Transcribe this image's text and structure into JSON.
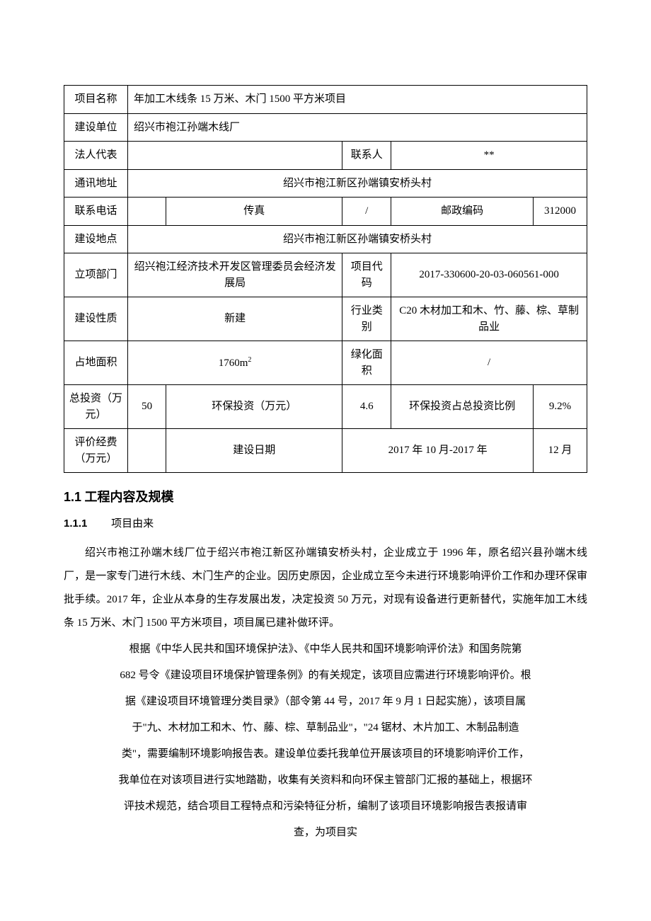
{
  "table": {
    "project_name_label": "项目名称",
    "project_name": "年加工木线条 15 万米、木门 1500 平方米项目",
    "build_unit_label": "建设单位",
    "build_unit": "绍兴市袍江孙端木线厂",
    "legal_rep_label": "法人代表",
    "legal_rep": "",
    "contact_label": "联系人",
    "contact": "**",
    "address_label": "通讯地址",
    "address": "绍兴市袍江新区孙端镇安桥头村",
    "phone_label": "联系电话",
    "phone": "",
    "fax_label": "传真",
    "fax": "/",
    "postcode_label": "邮政编码",
    "postcode": "312000",
    "build_loc_label": "建设地点",
    "build_loc": "绍兴市袍江新区孙端镇安桥头村",
    "dept_label": "立项部门",
    "dept": "绍兴袍江经济技术开发区管理委员会经济发展局",
    "proj_code_label": "项目代码",
    "proj_code": "2017-330600-20-03-060561-000",
    "nature_label": "建设性质",
    "nature": "新建",
    "industry_label": "行业类别",
    "industry": "C20 木材加工和木、竹、藤、棕、草制品业",
    "area_label": "占地面积",
    "area_val": "1760m",
    "area_sup": "2",
    "green_area_label": "绿化面积",
    "green_area": "/",
    "invest_label": "总投资（万元）",
    "invest": "50",
    "env_invest_label": "环保投资（万元）",
    "env_invest": "4.6",
    "env_ratio_label": "环保投资占总投资比例",
    "env_ratio": "9.2%",
    "eval_fee_label": "评价经费（万元）",
    "eval_fee": "",
    "build_date_label": "建设日期",
    "build_date_1": "2017 年 10 月-2017 年",
    "build_date_2": "12 月"
  },
  "section": {
    "num": "1.1",
    "title": "工程内容及规模"
  },
  "subsection": {
    "num": "1.1.1",
    "title": "项目由来"
  },
  "para1": "绍兴市袍江孙端木线厂位于绍兴市袍江新区孙端镇安桥头村，企业成立于 1996 年，原名绍兴县孙端木线厂，是一家专门进行木线、木门生产的企业。因历史原因，企业成立至今未进行环境影响评价工作和办理环保审批手续。2017 年，企业从本身的生存发展出发，决定投资 50 万元，对现有设备进行更新替代，实施年加工木线条 15 万米、木门 1500 平方米项目，项目属已建补做环评。",
  "para2_l1": "根据《中华人民共和国环境保护法》、《中华人民共和国环境影响评价法》和国务院第",
  "para2_l2": "682 号令《建设项目环境保护管理条例》的有关规定，该项目应需进行环境影响评价。根",
  "para2_l3": "据《建设项目环境管理分类目录》（部令第 44 号，2017 年 9 月 1 日起实施），该项目属",
  "para2_l4": "于\"九、木材加工和木、竹、藤、棕、草制品业\"，\"24 锯材、木片加工、木制品制造",
  "para2_l5": "类\"，需要编制环境影响报告表。建设单位委托我单位开展该项目的环境影响评价工作，",
  "para2_l6": "我单位在对该项目进行实地踏勘，收集有关资料和向环保主管部门汇报的基础上，根据环",
  "para2_l7": "评技术规范，结合项目工程特点和污染特征分析，编制了该项目环境影响报告表报请审",
  "para2_l8": "查，为项目实"
}
